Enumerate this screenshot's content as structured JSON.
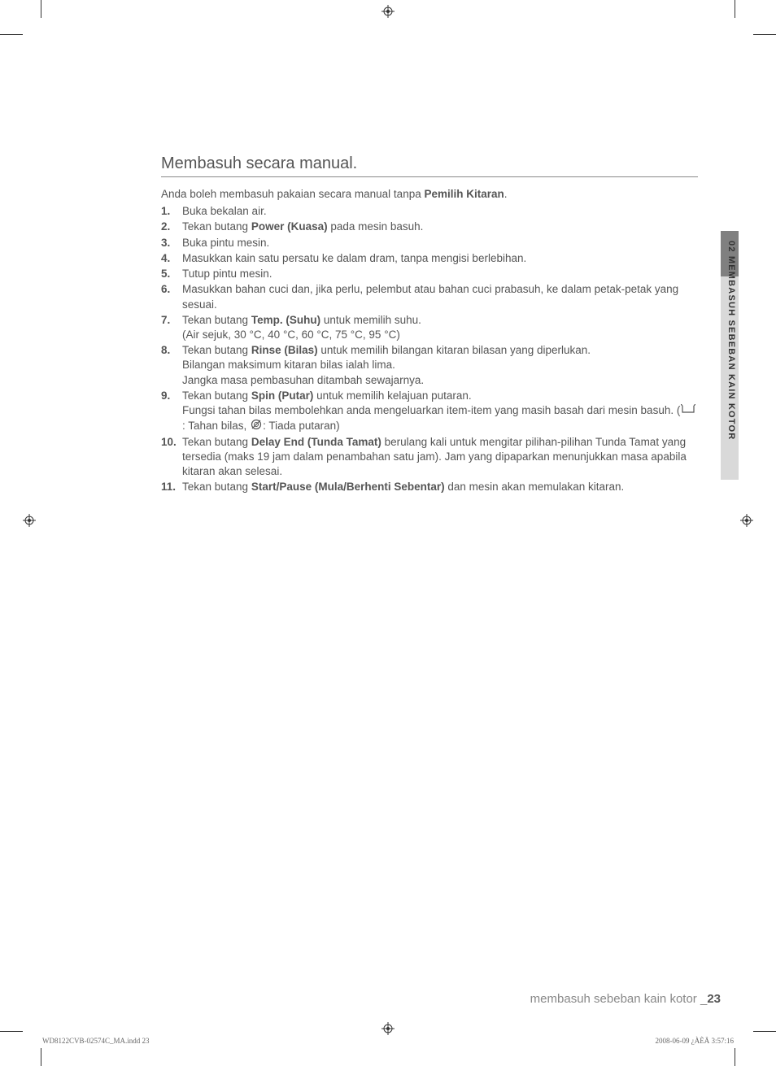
{
  "section": {
    "title": "Membasuh secara manual.",
    "intro_pre": "Anda boleh membasuh pakaian secara manual tanpa ",
    "intro_bold": "Pemilih Kitaran",
    "intro_post": "."
  },
  "steps": [
    {
      "n": "1.",
      "parts": [
        {
          "t": "Buka bekalan air."
        }
      ]
    },
    {
      "n": "2.",
      "parts": [
        {
          "t": "Tekan butang "
        },
        {
          "t": "Power (Kuasa)",
          "b": true
        },
        {
          "t": " pada mesin basuh."
        }
      ]
    },
    {
      "n": "3.",
      "parts": [
        {
          "t": "Buka pintu mesin."
        }
      ]
    },
    {
      "n": "4.",
      "parts": [
        {
          "t": "Masukkan kain satu persatu ke dalam dram, tanpa mengisi berlebihan."
        }
      ]
    },
    {
      "n": "5.",
      "parts": [
        {
          "t": "Tutup pintu mesin."
        }
      ]
    },
    {
      "n": "6.",
      "parts": [
        {
          "t": "Masukkan bahan cuci dan, jika perlu, pelembut atau bahan cuci prabasuh, ke dalam petak-petak yang sesuai."
        }
      ]
    },
    {
      "n": "7.",
      "parts": [
        {
          "t": "Tekan butang "
        },
        {
          "t": "Temp. (Suhu)",
          "b": true
        },
        {
          "t": " untuk memilih suhu."
        }
      ],
      "sub": "(Air sejuk, 30 °C, 40 °C, 60 °C, 75 °C, 95 °C)"
    },
    {
      "n": "8.",
      "parts": [
        {
          "t": "Tekan butang "
        },
        {
          "t": "Rinse (Bilas)",
          "b": true
        },
        {
          "t": " untuk memilih bilangan kitaran bilasan yang diperlukan."
        }
      ],
      "sub": "Bilangan maksimum kitaran bilas ialah lima.",
      "sub2": "Jangka masa pembasuhan ditambah sewajarnya."
    },
    {
      "n": "9.",
      "parts": [
        {
          "t": "Tekan butang "
        },
        {
          "t": "Spin (Putar)",
          "b": true
        },
        {
          "t": " untuk memilih kelajuan putaran."
        }
      ],
      "sub_icons": true,
      "sub_pre": "Fungsi tahan bilas membolehkan anda mengeluarkan item-item yang masih basah dari mesin basuh. (",
      "icon1_label": " : Tahan bilas, ",
      "icon2_label": ": Tiada putaran)"
    },
    {
      "n": "10.",
      "parts": [
        {
          "t": "Tekan butang "
        },
        {
          "t": "Delay End (Tunda Tamat)",
          "b": true
        },
        {
          "t": " berulang kali untuk mengitar pilihan-pilihan Tunda Tamat yang tersedia (maks 19 jam dalam penambahan satu jam). Jam yang dipaparkan menunjukkan masa apabila kitaran akan selesai."
        }
      ]
    },
    {
      "n": "11.",
      "parts": [
        {
          "t": "Tekan butang "
        },
        {
          "t": "Start/Pause (Mula/Berhenti Sebentar)",
          "b": true
        },
        {
          "t": " dan mesin akan memulakan kitaran."
        }
      ]
    }
  ],
  "side_tab": {
    "label": "02 MEMBASUH SEBEBAN KAIN KOTOR"
  },
  "footer": {
    "section_label": "membasuh sebeban kain kotor _",
    "page_number": "23"
  },
  "print": {
    "file": "WD8122CVB-02574C_MA.indd   23",
    "timestamp": "2008-06-09   ¿ÀÈÄ 3:57:16"
  },
  "colors": {
    "text": "#555555",
    "tab_light": "#d9d9d9",
    "tab_dark": "#808080",
    "rule": "#888888"
  }
}
